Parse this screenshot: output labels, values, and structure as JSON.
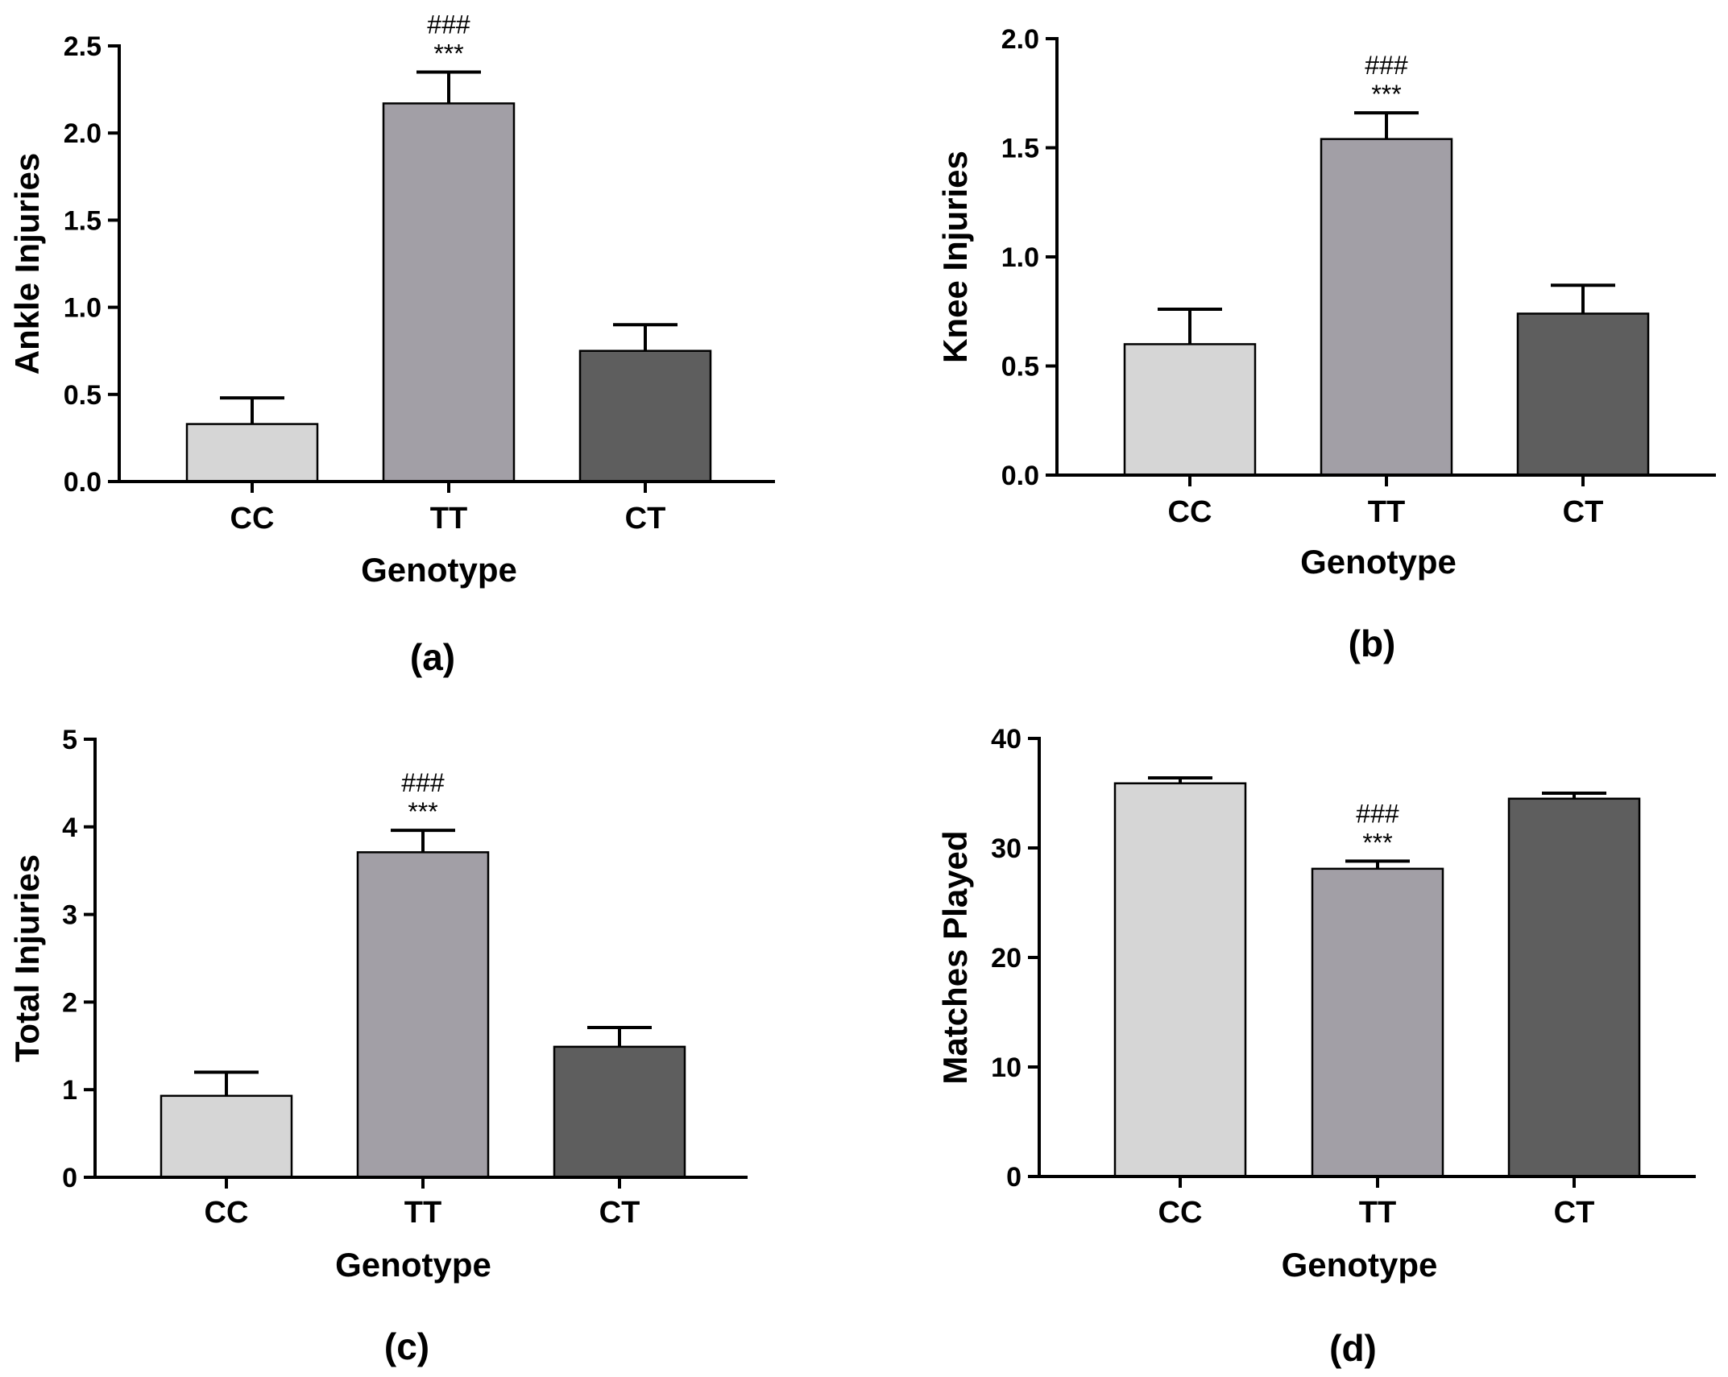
{
  "chart_data": [
    {
      "panel": "(a)",
      "type": "bar",
      "categories": [
        "CC",
        "TT",
        "CT"
      ],
      "values": [
        0.33,
        2.17,
        0.75
      ],
      "errors": [
        0.15,
        0.18,
        0.15
      ],
      "bar_colors": [
        "#d6d6d6",
        "#a29fa6",
        "#5e5e5e"
      ],
      "ylabel": "Ankle Injuries",
      "xlabel": "Genotype",
      "ylim": [
        0,
        2.5
      ],
      "yticks": [
        "0.0",
        "0.5",
        "1.0",
        "1.5",
        "2.0",
        "2.5"
      ],
      "annotations": [
        {
          "category": "TT",
          "lines": [
            "###",
            "***"
          ]
        }
      ]
    },
    {
      "panel": "(b)",
      "type": "bar",
      "categories": [
        "CC",
        "TT",
        "CT"
      ],
      "values": [
        0.6,
        1.54,
        0.74
      ],
      "errors": [
        0.16,
        0.12,
        0.13
      ],
      "bar_colors": [
        "#d6d6d6",
        "#a29fa6",
        "#5e5e5e"
      ],
      "ylabel": "Knee Injuries",
      "xlabel": "Genotype",
      "ylim": [
        0,
        2.0
      ],
      "yticks": [
        "0.0",
        "0.5",
        "1.0",
        "1.5",
        "2.0"
      ],
      "annotations": [
        {
          "category": "TT",
          "lines": [
            "###",
            "***"
          ]
        }
      ]
    },
    {
      "panel": "(c)",
      "type": "bar",
      "categories": [
        "CC",
        "TT",
        "CT"
      ],
      "values": [
        0.93,
        3.71,
        1.49
      ],
      "errors": [
        0.27,
        0.25,
        0.22
      ],
      "bar_colors": [
        "#d6d6d6",
        "#a29fa6",
        "#5e5e5e"
      ],
      "ylabel": "Total Injuries",
      "xlabel": "Genotype",
      "ylim": [
        0,
        5
      ],
      "yticks": [
        "0",
        "1",
        "2",
        "3",
        "4",
        "5"
      ],
      "annotations": [
        {
          "category": "TT",
          "lines": [
            "###",
            "***"
          ]
        }
      ]
    },
    {
      "panel": "(d)",
      "type": "bar",
      "categories": [
        "CC",
        "TT",
        "CT"
      ],
      "values": [
        35.9,
        28.1,
        34.5
      ],
      "errors": [
        0.5,
        0.7,
        0.5
      ],
      "bar_colors": [
        "#d6d6d6",
        "#a29fa6",
        "#5e5e5e"
      ],
      "ylabel": "Matches Played",
      "xlabel": "Genotype",
      "ylim": [
        0,
        40
      ],
      "yticks": [
        "0",
        "10",
        "20",
        "30",
        "40"
      ],
      "annotations": [
        {
          "category": "TT",
          "lines": [
            "###",
            "***"
          ]
        }
      ]
    }
  ]
}
